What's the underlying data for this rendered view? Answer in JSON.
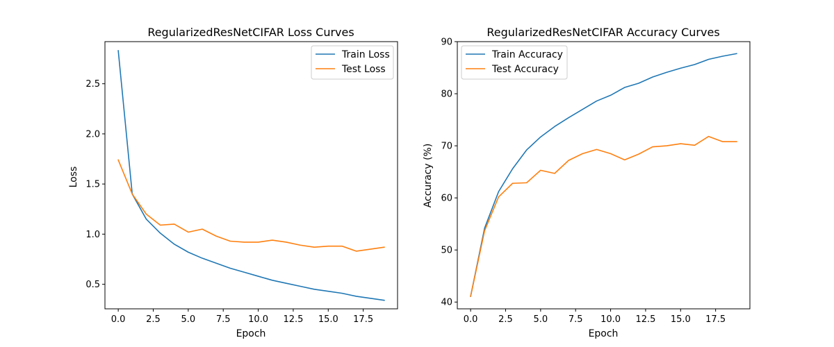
{
  "chart_data": [
    {
      "type": "line",
      "title": "RegularizedResNetCIFAR Loss Curves",
      "xlabel": "Epoch",
      "ylabel": "Loss",
      "x": [
        0,
        1,
        2,
        3,
        4,
        5,
        6,
        7,
        8,
        9,
        10,
        11,
        12,
        13,
        14,
        15,
        16,
        17,
        18,
        19
      ],
      "xlim": [
        -0.95,
        19.95
      ],
      "ylim": [
        0.255,
        2.92
      ],
      "xticks": [
        0.0,
        2.5,
        5.0,
        7.5,
        10.0,
        12.5,
        15.0,
        17.5
      ],
      "xtick_labels": [
        "0.0",
        "2.5",
        "5.0",
        "7.5",
        "10.0",
        "12.5",
        "15.0",
        "17.5"
      ],
      "yticks": [
        0.5,
        1.0,
        1.5,
        2.0,
        2.5
      ],
      "ytick_labels": [
        "0.5",
        "1.0",
        "1.5",
        "2.0",
        "2.5"
      ],
      "legend_position": "top-right",
      "grid": false,
      "series": [
        {
          "name": "Train Loss",
          "color": "#1f77b4",
          "values": [
            2.83,
            1.4,
            1.15,
            1.01,
            0.9,
            0.82,
            0.76,
            0.71,
            0.66,
            0.62,
            0.58,
            0.54,
            0.51,
            0.48,
            0.45,
            0.43,
            0.41,
            0.38,
            0.36,
            0.34
          ]
        },
        {
          "name": "Test Loss",
          "color": "#ff7f0e",
          "values": [
            1.74,
            1.4,
            1.2,
            1.09,
            1.1,
            1.02,
            1.05,
            0.98,
            0.93,
            0.92,
            0.92,
            0.94,
            0.92,
            0.89,
            0.87,
            0.88,
            0.88,
            0.83,
            0.85,
            0.87
          ]
        }
      ]
    },
    {
      "type": "line",
      "title": "RegularizedResNetCIFAR Accuracy Curves",
      "xlabel": "Epoch",
      "ylabel": "Accuracy (%)",
      "x": [
        0,
        1,
        2,
        3,
        4,
        5,
        6,
        7,
        8,
        9,
        10,
        11,
        12,
        13,
        14,
        15,
        16,
        17,
        18,
        19
      ],
      "xlim": [
        -0.95,
        19.95
      ],
      "ylim": [
        38.7,
        90.0
      ],
      "xticks": [
        0.0,
        2.5,
        5.0,
        7.5,
        10.0,
        12.5,
        15.0,
        17.5
      ],
      "xtick_labels": [
        "0.0",
        "2.5",
        "5.0",
        "7.5",
        "10.0",
        "12.5",
        "15.0",
        "17.5"
      ],
      "yticks": [
        40,
        50,
        60,
        70,
        80,
        90
      ],
      "ytick_labels": [
        "40",
        "50",
        "60",
        "70",
        "80",
        "90"
      ],
      "legend_position": "top-left",
      "grid": false,
      "series": [
        {
          "name": "Train Accuracy",
          "color": "#1f77b4",
          "values": [
            41.1,
            54.2,
            61.2,
            65.6,
            69.2,
            71.7,
            73.7,
            75.4,
            77.0,
            78.6,
            79.7,
            81.2,
            82.0,
            83.2,
            84.1,
            84.9,
            85.6,
            86.6,
            87.2,
            87.7
          ]
        },
        {
          "name": "Test Accuracy",
          "color": "#ff7f0e",
          "values": [
            41.1,
            53.7,
            60.2,
            62.8,
            62.9,
            65.3,
            64.7,
            67.2,
            68.5,
            69.3,
            68.5,
            67.3,
            68.4,
            69.8,
            70.0,
            70.4,
            70.1,
            71.8,
            70.8,
            70.8
          ]
        }
      ]
    }
  ]
}
